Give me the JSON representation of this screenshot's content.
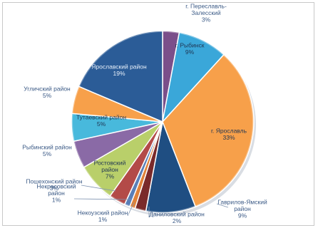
{
  "chart_data": {
    "type": "pie",
    "title": "",
    "slices": [
      {
        "label": "г. Переславль-Залесский",
        "display": [
          "г. Переславль-",
          "Залесский"
        ],
        "value": 3,
        "color": "#7b4f8a"
      },
      {
        "label": "г. Рыбинск",
        "display": [
          "г. Рыбинск"
        ],
        "value": 9,
        "color": "#3aa7d9"
      },
      {
        "label": "г. Ярославль",
        "display": [
          "г. Ярославль"
        ],
        "value": 33,
        "color": "#f7a04a"
      },
      {
        "label": "Гаврилов-Ямский район",
        "display": [
          "Гаврилов-Ямский",
          "район"
        ],
        "value": 9,
        "color": "#1f4e82"
      },
      {
        "label": "Даниловский район",
        "display": [
          "Даниловский район"
        ],
        "value": 2,
        "color": "#7a2a2a"
      },
      {
        "label": "Некоузский район",
        "display": [
          "Некоузский район"
        ],
        "value": 1,
        "color": "#e0823a"
      },
      {
        "label": "Некрасовский район",
        "display": [
          "Некрасовский",
          "район"
        ],
        "value": 1,
        "color": "#5a7fb8"
      },
      {
        "label": "Пошехонский район",
        "display": [
          "Пошехонский район"
        ],
        "value": 3,
        "color": "#b34a48"
      },
      {
        "label": "Ростовский район",
        "display": [
          "Ростовский",
          "район"
        ],
        "value": 7,
        "color": "#b9cf6a"
      },
      {
        "label": "Рыбинский район",
        "display": [
          "Рыбинский район"
        ],
        "value": 5,
        "color": "#8a6aa6"
      },
      {
        "label": "Тутаевский район",
        "display": [
          "Тутаевский район"
        ],
        "value": 5,
        "color": "#48b9dc"
      },
      {
        "label": "Угличский район",
        "display": [
          "Угличский район"
        ],
        "value": 5,
        "color": "#f7a04a"
      },
      {
        "label": "Ярославский район",
        "display": [
          "Ярославский район"
        ],
        "value": 19,
        "color": "#2b5c97"
      }
    ],
    "unit_suffix": "%",
    "legend": "none"
  }
}
